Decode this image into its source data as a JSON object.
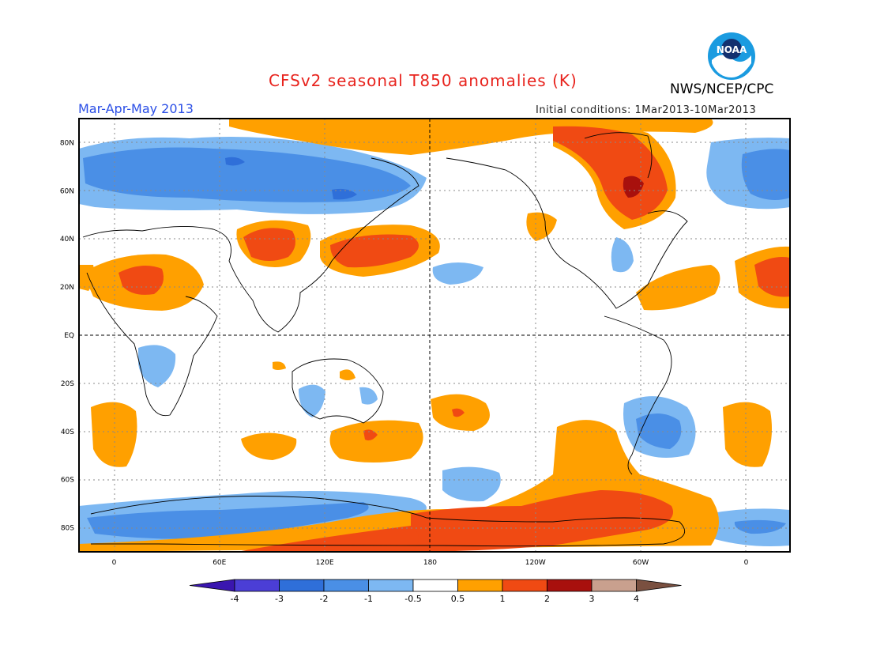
{
  "header": {
    "title": "CFSv2 seasonal T850 anomalies (K)",
    "season": "Mar-Apr-May 2013",
    "initial_conditions": "Initial conditions: 1Mar2013-10Mar2013",
    "agency": "NWS/NCEP/CPC",
    "logo_text": "NOAA"
  },
  "axes": {
    "lat_labels": [
      "80N",
      "60N",
      "40N",
      "20N",
      "EQ",
      "20S",
      "40S",
      "60S",
      "80S"
    ],
    "lat_values": [
      80,
      60,
      40,
      20,
      0,
      -20,
      -40,
      -60,
      -80
    ],
    "lon_labels": [
      "0",
      "60E",
      "120E",
      "180",
      "120W",
      "60W",
      "0"
    ],
    "lon_values": [
      0,
      60,
      120,
      180,
      240,
      300,
      360
    ],
    "lon_range": [
      -20,
      385
    ],
    "lat_range": [
      -90,
      90
    ]
  },
  "colorbar": {
    "labels": [
      "-4",
      "-3",
      "-2",
      "-1",
      "-0.5",
      "0.5",
      "1",
      "2",
      "3",
      "4"
    ],
    "colors": [
      "#3a16b0",
      "#4b3ed6",
      "#2f6fd9",
      "#4a8fe6",
      "#7db8f2",
      "#ffffff",
      "#ffa000",
      "#f04a13",
      "#a8100d",
      "#c9a08e",
      "#7a5040"
    ]
  },
  "colors": {
    "title": "#e8231d",
    "season": "#2a4ee6",
    "cold1": "#7db8f2",
    "cold2": "#4a8fe6",
    "cold3": "#2f6fd9",
    "warm1": "#ffa000",
    "warm2": "#f04a13",
    "warm3": "#a8100d"
  }
}
